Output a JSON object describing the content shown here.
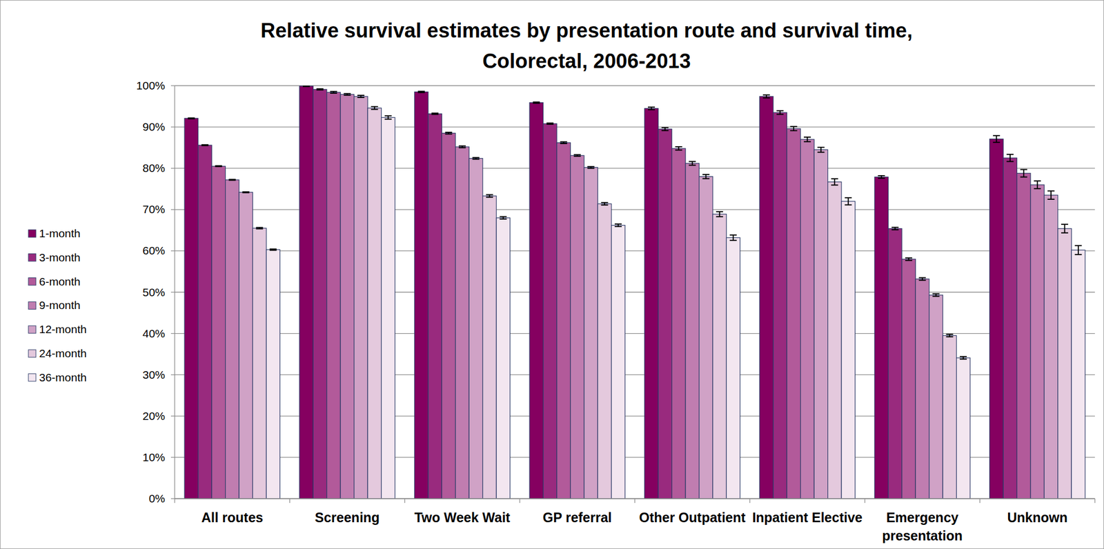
{
  "chart_data": {
    "type": "bar",
    "title": "Relative survival estimates by presentation route and survival time,\nColorectal, 2006-2013",
    "categories": [
      "All routes",
      "Screening",
      "Two Week Wait",
      "GP referral",
      "Other Outpatient",
      "Inpatient Elective",
      "Emergency presentation",
      "Unknown"
    ],
    "series": [
      {
        "name": "1-month",
        "color": "#850060",
        "values": [
          92.1,
          99.9,
          98.5,
          95.9,
          94.5,
          97.4,
          77.9,
          87.1
        ],
        "errors": [
          0.1,
          0.1,
          0.15,
          0.15,
          0.3,
          0.35,
          0.3,
          0.8
        ]
      },
      {
        "name": "3-month",
        "color": "#992a7e",
        "values": [
          85.6,
          99.1,
          93.2,
          90.8,
          89.5,
          93.5,
          65.4,
          82.5
        ],
        "errors": [
          0.1,
          0.15,
          0.15,
          0.15,
          0.35,
          0.45,
          0.3,
          0.85
        ]
      },
      {
        "name": "6-month",
        "color": "#b25a9a",
        "values": [
          80.5,
          98.4,
          88.5,
          86.2,
          84.8,
          89.6,
          58.0,
          78.8
        ],
        "errors": [
          0.1,
          0.2,
          0.2,
          0.2,
          0.4,
          0.5,
          0.3,
          0.9
        ]
      },
      {
        "name": "9-month",
        "color": "#c07db0",
        "values": [
          77.2,
          97.9,
          85.2,
          83.1,
          81.2,
          87.0,
          53.2,
          76.0
        ],
        "errors": [
          0.1,
          0.2,
          0.2,
          0.2,
          0.45,
          0.55,
          0.3,
          0.95
        ]
      },
      {
        "name": "12-month",
        "color": "#d0a2c6",
        "values": [
          74.2,
          97.4,
          82.4,
          80.2,
          78.0,
          84.5,
          49.3,
          73.5
        ],
        "errors": [
          0.1,
          0.25,
          0.2,
          0.2,
          0.5,
          0.6,
          0.3,
          1.0
        ]
      },
      {
        "name": "24-month",
        "color": "#e4c9dd",
        "values": [
          65.5,
          94.6,
          73.3,
          71.4,
          68.9,
          76.7,
          39.5,
          65.4
        ],
        "errors": [
          0.15,
          0.35,
          0.3,
          0.3,
          0.6,
          0.75,
          0.3,
          1.05
        ]
      },
      {
        "name": "36-month",
        "color": "#f3e6f0",
        "values": [
          60.3,
          92.3,
          68.0,
          66.2,
          63.2,
          72.0,
          34.1,
          60.2
        ],
        "errors": [
          0.15,
          0.4,
          0.3,
          0.3,
          0.65,
          0.85,
          0.3,
          1.1
        ]
      }
    ],
    "ylim": [
      0,
      100
    ],
    "yticks": [
      {
        "value": 0,
        "label": "0%"
      },
      {
        "value": 10,
        "label": "10%"
      },
      {
        "value": 20,
        "label": "20%"
      },
      {
        "value": 30,
        "label": "30%"
      },
      {
        "value": 40,
        "label": "40%"
      },
      {
        "value": 50,
        "label": "50%"
      },
      {
        "value": 60,
        "label": "60%"
      },
      {
        "value": 70,
        "label": "70%"
      },
      {
        "value": 80,
        "label": "80%"
      },
      {
        "value": 90,
        "label": "90%"
      },
      {
        "value": 100,
        "label": "100%"
      }
    ],
    "grid": true,
    "legend": "left"
  }
}
